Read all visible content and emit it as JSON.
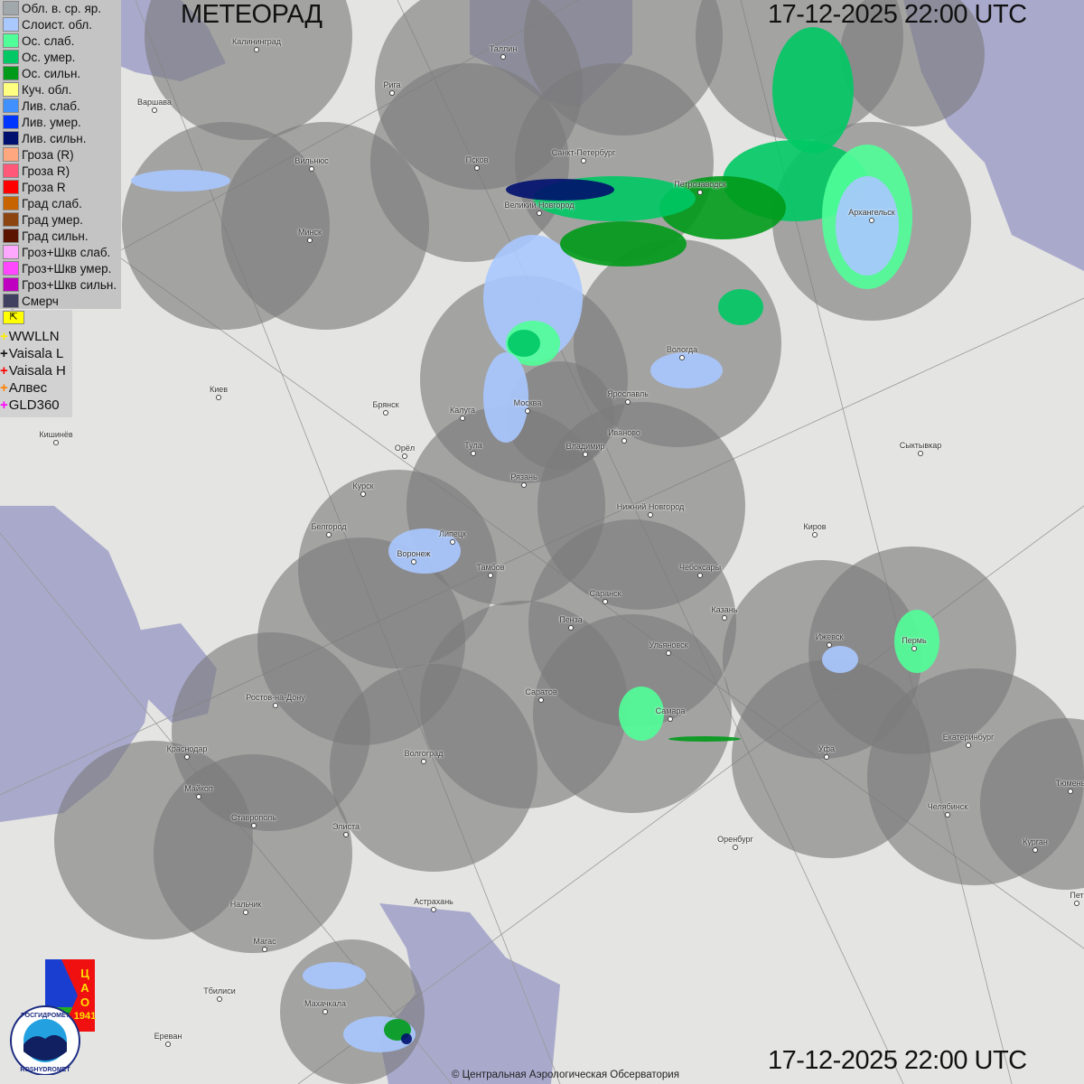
{
  "header": {
    "title": "МЕТЕОРАД",
    "datetime": "17-12-2025  22:00 UTC"
  },
  "footer": {
    "datetime": "17-12-2025  22:00 UTC",
    "credit": "© Центральная Аэрологическая Обсерватория"
  },
  "legend": [
    {
      "label": "Обл. в. ср. яр.",
      "color": "#a0a8ac"
    },
    {
      "label": "Слоист. обл.",
      "color": "#a8c8ff"
    },
    {
      "label": "Ос. слаб.",
      "color": "#50ff98"
    },
    {
      "label": "Ос. умер.",
      "color": "#00c864"
    },
    {
      "label": "Ос. сильн.",
      "color": "#009a1a"
    },
    {
      "label": "Куч. обл.",
      "color": "#ffff80"
    },
    {
      "label": "Лив. слаб.",
      "color": "#4090ff"
    },
    {
      "label": "Лив. умер.",
      "color": "#0034ff"
    },
    {
      "label": "Лив. сильн.",
      "color": "#00106e"
    },
    {
      "label": "Гроза (R)",
      "color": "#ffa880"
    },
    {
      "label": "Гроза R)",
      "color": "#ff5878"
    },
    {
      "label": "Гроза R",
      "color": "#ff0000"
    },
    {
      "label": "Град слаб.",
      "color": "#c86400"
    },
    {
      "label": "Град умер.",
      "color": "#8c4410"
    },
    {
      "label": "Град сильн.",
      "color": "#5a1400"
    },
    {
      "label": "Гроз+Шкв слаб.",
      "color": "#ffa8ff"
    },
    {
      "label": "Гроз+Шкв умер.",
      "color": "#ff48ff"
    },
    {
      "label": "Гроз+Шкв сильн.",
      "color": "#c000c0"
    },
    {
      "label": "Смерч",
      "color": "#404060"
    }
  ],
  "lightning": {
    "flag_icon": "flag-corner-icon",
    "sources": [
      {
        "label": "WWLLN",
        "color": "#ffee00"
      },
      {
        "label": "Vaisala L",
        "color": "#111111"
      },
      {
        "label": "Vaisala H",
        "color": "#ff0000"
      },
      {
        "label": "Алвес",
        "color": "#ff8000"
      },
      {
        "label": "GLD360",
        "color": "#ff00ff"
      }
    ]
  },
  "logos": {
    "cao": "ЦАО 1941",
    "roshydromet_top": "РОСГИДРОМЕТ",
    "roshydromet_bottom": "ROSHYDROMET"
  },
  "cities": [
    "Калининград",
    "Таллин",
    "Рига",
    "Варшава",
    "Вильнюс",
    "Псков",
    "Санкт-Петербург",
    "Петрозаводск",
    "Великий Новгород",
    "Архангельск",
    "Минск",
    "Вологда",
    "Киев",
    "Брянск",
    "Калуга",
    "Москва",
    "Ярославль",
    "Иваново",
    "Кишинёв",
    "Орёл",
    "Тула",
    "Владимир",
    "Сыктывкар",
    "Рязань",
    "Курск",
    "Нижний Новгород",
    "Киров",
    "Белгород",
    "Липецк",
    "Воронеж",
    "Тамбов",
    "Чебоксары",
    "Саранск",
    "Казань",
    "Пенза",
    "Ижевск",
    "Пермь",
    "Ульяновск",
    "Ростов-на-Дону",
    "Саратов",
    "Самара",
    "Краснодар",
    "Уфа",
    "Екатеринбург",
    "Волгоград",
    "Майкоп",
    "Тюмень",
    "Челябинск",
    "Ставрополь",
    "Элиста",
    "Оренбург",
    "Курган",
    "Нальчик",
    "Астрахань",
    "Пет",
    "Магас",
    "Тбилиси",
    "Махачкала",
    "Ереван"
  ]
}
